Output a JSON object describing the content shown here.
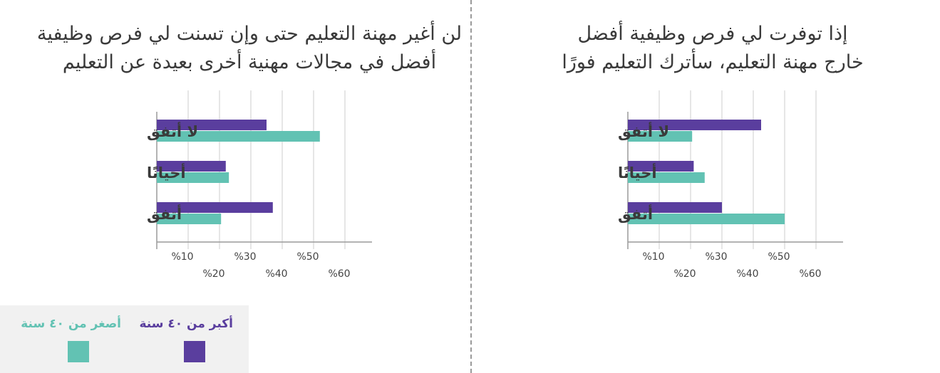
{
  "colors": {
    "older": "#5a3e9e",
    "younger": "#62c2b3",
    "grid": "#cccccc",
    "axis": "#9a9a9a"
  },
  "legend": [
    {
      "label": "أكبر من ٤٠ سنة",
      "color": "#5a3e9e"
    },
    {
      "label": "أصغر من ٤٠ سنة",
      "color": "#62c2b3"
    }
  ],
  "chart_data": [
    {
      "type": "bar",
      "orientation": "horizontal",
      "title": "لن أغير مهنة التعليم حتى وإن تسنت لي فرص وظيفية\nأفضل في مجالات مهنية أخرى بعيدة عن التعليم",
      "categories": [
        "لا أتفق",
        "أحيانًا",
        "أتفق"
      ],
      "series": [
        {
          "name": "أكبر من ٤٠ سنة",
          "values": [
            35,
            22,
            37
          ]
        },
        {
          "name": "أصغر من ٤٠ سنة",
          "values": [
            52,
            23,
            20.5
          ]
        }
      ],
      "xlim": [
        0,
        68
      ],
      "ticks_upper": [
        "%10",
        "%30",
        "%50"
      ],
      "ticks_lower": [
        "%20",
        "%40",
        "%60"
      ],
      "grid": true
    },
    {
      "type": "bar",
      "orientation": "horizontal",
      "title": "إذا توفرت لي فرص وظيفية أفضل\nخارج مهنة التعليم، سأترك التعليم فورًا",
      "categories": [
        "لا أتفق",
        "أحيانًا",
        "أتفق"
      ],
      "series": [
        {
          "name": "أكبر من ٤٠ سنة",
          "values": [
            42.5,
            21,
            30
          ]
        },
        {
          "name": "أصغر من ٤٠ سنة",
          "values": [
            20.5,
            24.5,
            50
          ]
        }
      ],
      "xlim": [
        0,
        68
      ],
      "ticks_upper": [
        "%10",
        "%30",
        "%50"
      ],
      "ticks_lower": [
        "%20",
        "%40",
        "%60"
      ],
      "grid": true
    }
  ]
}
